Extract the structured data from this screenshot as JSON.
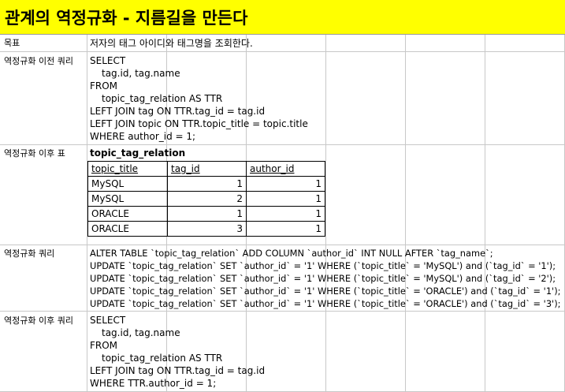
{
  "title": "관계의 역정규화 - 지름길을 만든다",
  "rows": {
    "goal": {
      "label": "목표",
      "value": "저자의 태그 아이디와 태그명을 조회한다."
    },
    "before_query": {
      "label": "역정규화 이전 쿼리",
      "lines": [
        "SELECT",
        "tag.id, tag.name",
        "FROM",
        "topic_tag_relation AS TTR",
        "LEFT JOIN tag ON TTR.tag_id = tag.id",
        "LEFT JOIN topic ON TTR.topic_title = topic.title",
        "WHERE author_id = 1;"
      ]
    },
    "after_table": {
      "label": "역정규화 이후 표",
      "table_name": "topic_tag_relation",
      "headers": [
        "topic_title",
        "tag_id",
        "author_id"
      ],
      "rows": [
        [
          "MySQL",
          "1",
          "1"
        ],
        [
          "MySQL",
          "2",
          "1"
        ],
        [
          "ORACLE",
          "1",
          "1"
        ],
        [
          "ORACLE",
          "3",
          "1"
        ]
      ]
    },
    "denorm_query": {
      "label": "역정규화 쿼리",
      "lines": [
        "ALTER TABLE `topic_tag_relation` ADD COLUMN `author_id` INT NULL AFTER `tag_name`;",
        "UPDATE `topic_tag_relation` SET `author_id` = '1' WHERE (`topic_title` = 'MySQL') and (`tag_id` = '1');",
        "UPDATE `topic_tag_relation` SET `author_id` = '1' WHERE (`topic_title` = 'MySQL') and (`tag_id` = '2');",
        "UPDATE `topic_tag_relation` SET `author_id` = '1' WHERE (`topic_title` = 'ORACLE') and (`tag_id` = '1');",
        "UPDATE `topic_tag_relation` SET `author_id` = '1' WHERE (`topic_title` = 'ORACLE') and (`tag_id` = '3');"
      ]
    },
    "after_query": {
      "label": "역정규화 이후 쿼리",
      "lines": [
        "SELECT",
        "tag.id, tag.name",
        "FROM",
        "topic_tag_relation AS TTR",
        "LEFT JOIN tag ON TTR.tag_id = tag.id",
        "WHERE TTR.author_id = 1;"
      ]
    }
  }
}
